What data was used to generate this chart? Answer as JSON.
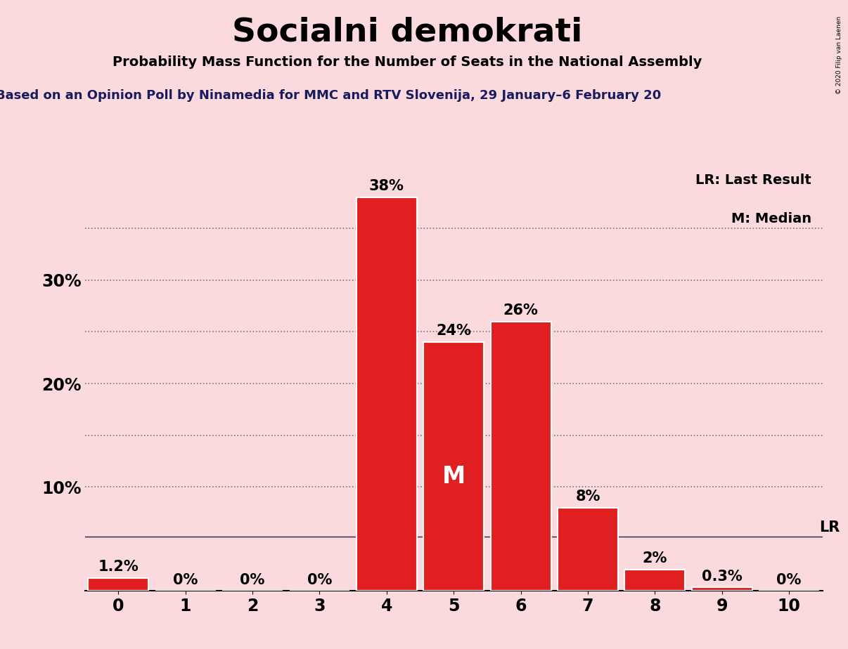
{
  "title": "Socialni demokrati",
  "subtitle": "Probability Mass Function for the Number of Seats in the National Assembly",
  "source_line": "Based on an Opinion Poll by Ninamedia for MMC and RTV Slovenija, 29 January–6 February 20",
  "copyright": "© 2020 Filip van Laenen",
  "categories": [
    0,
    1,
    2,
    3,
    4,
    5,
    6,
    7,
    8,
    9,
    10
  ],
  "values": [
    1.2,
    0,
    0,
    0,
    38,
    24,
    26,
    8,
    2,
    0.3,
    0
  ],
  "labels": [
    "1.2%",
    "0%",
    "0%",
    "0%",
    "38%",
    "24%",
    "26%",
    "8%",
    "2%",
    "0.3%",
    "0%"
  ],
  "bar_color": "#e02020",
  "background_color": "#fadadd",
  "bar_edge_color": "white",
  "ylim": [
    0,
    42
  ],
  "xlim": [
    -0.5,
    10.5
  ],
  "grid_color": "#777777",
  "median_bar": 5,
  "median_label": "M",
  "lr_label": "LR",
  "legend_text_lr": "LR: Last Result",
  "legend_text_m": "M: Median",
  "title_fontsize": 34,
  "subtitle_fontsize": 14,
  "source_fontsize": 13,
  "bar_label_fontsize": 15,
  "axis_tick_fontsize": 17,
  "lr_line_y": 5.2,
  "source_text_color": "#1a1a5e",
  "nav_text_color": "#1a1a5e"
}
